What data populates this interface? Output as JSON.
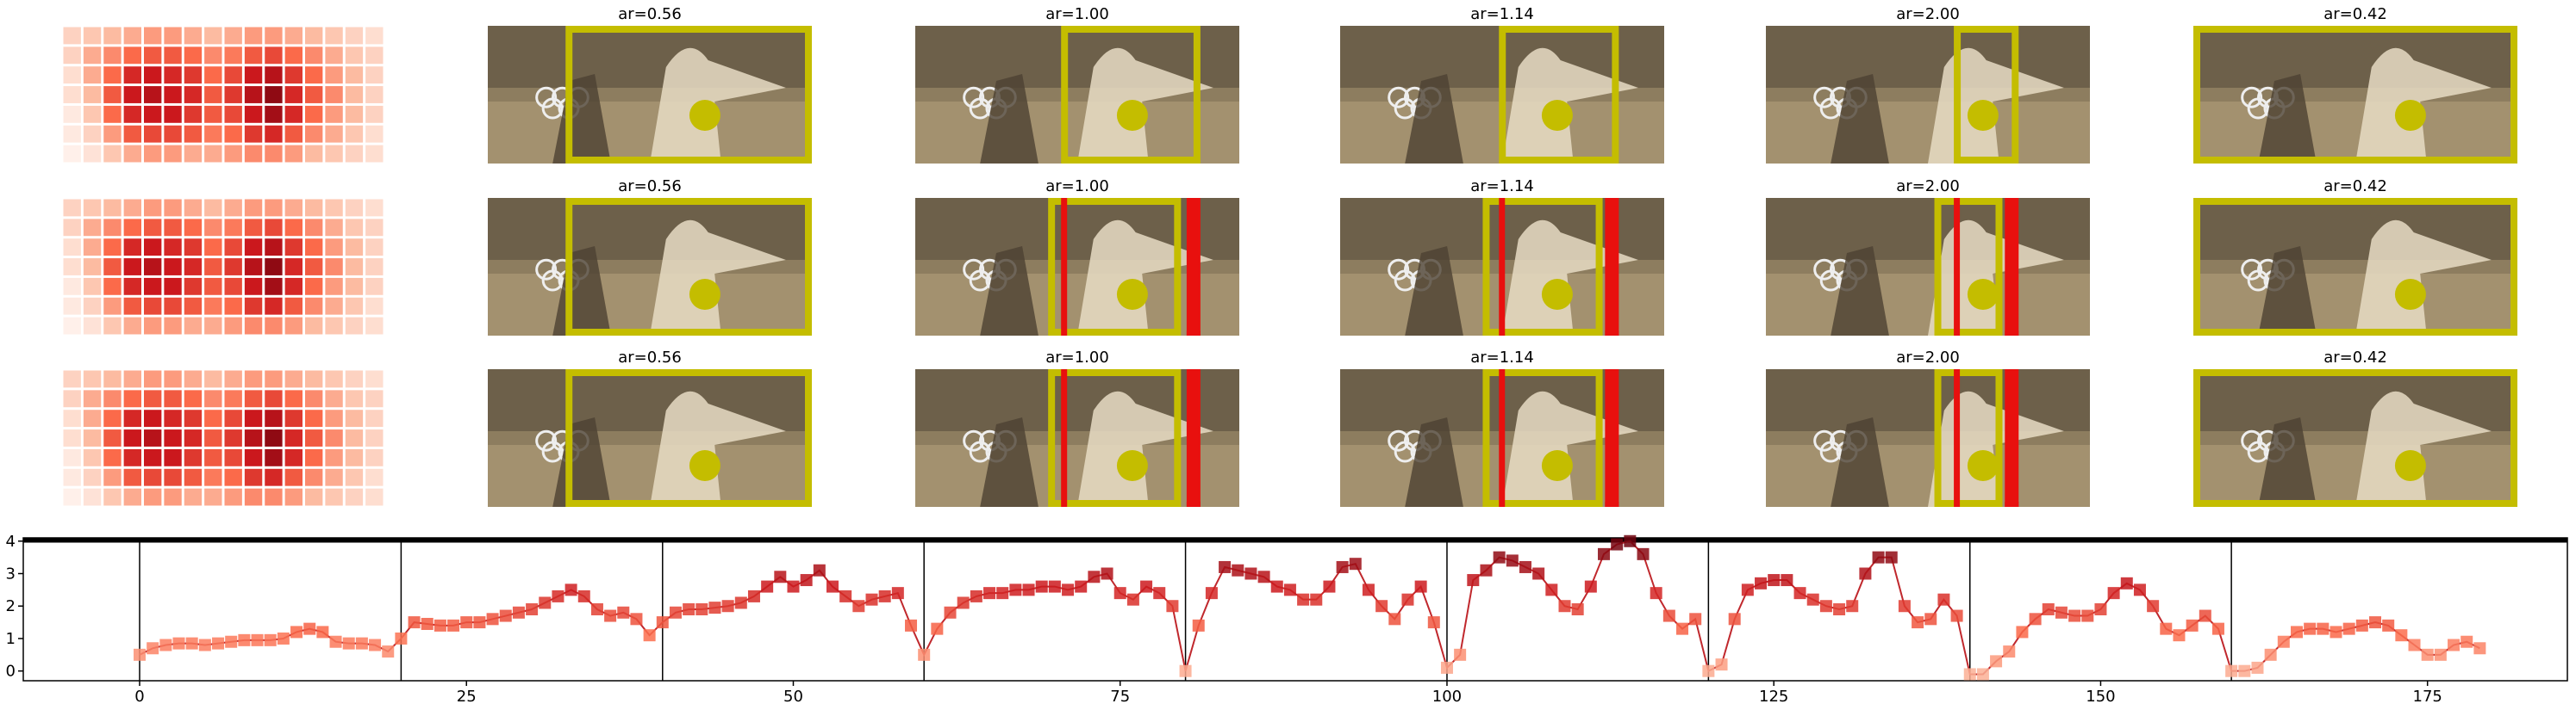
{
  "panel_titles": [
    [
      "ar=0.56",
      "ar=1.00",
      "ar=1.14",
      "ar=2.00",
      "ar=0.42"
    ],
    [
      "ar=0.56",
      "ar=1.00",
      "ar=1.14",
      "ar=2.00",
      "ar=0.42"
    ],
    [
      "ar=0.56",
      "ar=1.00",
      "ar=1.14",
      "ar=2.00",
      "ar=0.42"
    ]
  ],
  "heatmap": [
    [
      0.15,
      0.2,
      0.25,
      0.3,
      0.35,
      0.35,
      0.3,
      0.25,
      0.3,
      0.35,
      0.35,
      0.3,
      0.25,
      0.2,
      0.15,
      0.1
    ],
    [
      0.15,
      0.3,
      0.4,
      0.5,
      0.55,
      0.55,
      0.5,
      0.4,
      0.45,
      0.55,
      0.6,
      0.5,
      0.4,
      0.3,
      0.2,
      0.15
    ],
    [
      0.1,
      0.3,
      0.5,
      0.7,
      0.75,
      0.7,
      0.65,
      0.5,
      0.6,
      0.75,
      0.8,
      0.65,
      0.5,
      0.35,
      0.25,
      0.15
    ],
    [
      0.1,
      0.25,
      0.55,
      0.75,
      0.8,
      0.75,
      0.7,
      0.55,
      0.65,
      0.8,
      0.9,
      0.7,
      0.55,
      0.4,
      0.25,
      0.15
    ],
    [
      0.05,
      0.2,
      0.5,
      0.7,
      0.75,
      0.75,
      0.65,
      0.55,
      0.6,
      0.75,
      0.85,
      0.7,
      0.5,
      0.35,
      0.25,
      0.15
    ],
    [
      0.05,
      0.15,
      0.35,
      0.55,
      0.6,
      0.6,
      0.55,
      0.45,
      0.5,
      0.65,
      0.7,
      0.55,
      0.4,
      0.3,
      0.2,
      0.1
    ],
    [
      0.02,
      0.08,
      0.2,
      0.3,
      0.35,
      0.35,
      0.3,
      0.3,
      0.35,
      0.4,
      0.4,
      0.35,
      0.25,
      0.2,
      0.15,
      0.1
    ]
  ],
  "chart_data": {
    "type": "line",
    "color": "#c0282d",
    "xlim": [
      -8.9,
      185.7
    ],
    "ylim": [
      -0.3,
      4.1
    ],
    "xticks": [
      0,
      25,
      50,
      75,
      100,
      125,
      150,
      175
    ],
    "yticks": [
      0,
      1,
      2,
      3,
      4
    ],
    "boundaries": [
      0,
      20,
      40,
      60,
      80,
      100,
      120,
      140,
      160
    ],
    "values": [
      0.5,
      0.7,
      0.8,
      0.85,
      0.85,
      0.8,
      0.85,
      0.9,
      0.95,
      0.95,
      0.95,
      1.0,
      1.2,
      1.3,
      1.2,
      0.9,
      0.85,
      0.85,
      0.8,
      0.6,
      1.0,
      1.5,
      1.45,
      1.4,
      1.4,
      1.5,
      1.5,
      1.6,
      1.7,
      1.8,
      1.9,
      2.1,
      2.3,
      2.5,
      2.3,
      1.9,
      1.7,
      1.8,
      1.6,
      1.1,
      1.5,
      1.8,
      1.9,
      1.9,
      1.95,
      2.0,
      2.1,
      2.3,
      2.6,
      2.9,
      2.6,
      2.8,
      3.1,
      2.6,
      2.3,
      2.0,
      2.2,
      2.3,
      2.4,
      1.4,
      0.5,
      1.3,
      1.8,
      2.1,
      2.3,
      2.4,
      2.4,
      2.5,
      2.5,
      2.6,
      2.6,
      2.5,
      2.6,
      2.9,
      3.0,
      2.4,
      2.2,
      2.6,
      2.4,
      2.0,
      0.0,
      1.4,
      2.4,
      3.2,
      3.1,
      3.0,
      2.9,
      2.6,
      2.5,
      2.2,
      2.2,
      2.6,
      3.2,
      3.3,
      2.5,
      2.0,
      1.6,
      2.2,
      2.6,
      1.5,
      0.1,
      0.5,
      2.8,
      3.1,
      3.5,
      3.4,
      3.2,
      3.0,
      2.5,
      2.0,
      1.9,
      2.6,
      3.6,
      3.9,
      4.0,
      3.6,
      2.4,
      1.7,
      1.3,
      1.6,
      0.0,
      0.2,
      1.6,
      2.5,
      2.7,
      2.8,
      2.8,
      2.4,
      2.2,
      2.0,
      1.9,
      2.0,
      3.0,
      3.5,
      3.5,
      2.0,
      1.5,
      1.6,
      2.2,
      1.7,
      -0.1,
      -0.1,
      0.3,
      0.6,
      1.2,
      1.6,
      1.9,
      1.8,
      1.7,
      1.7,
      1.9,
      2.4,
      2.7,
      2.5,
      2.0,
      1.3,
      1.1,
      1.4,
      1.7,
      1.3,
      0.0,
      0.0,
      0.1,
      0.5,
      0.9,
      1.2,
      1.3,
      1.3,
      1.2,
      1.3,
      1.4,
      1.5,
      1.4,
      1.1,
      0.8,
      0.5,
      0.5,
      0.8,
      0.9,
      0.7
    ]
  }
}
